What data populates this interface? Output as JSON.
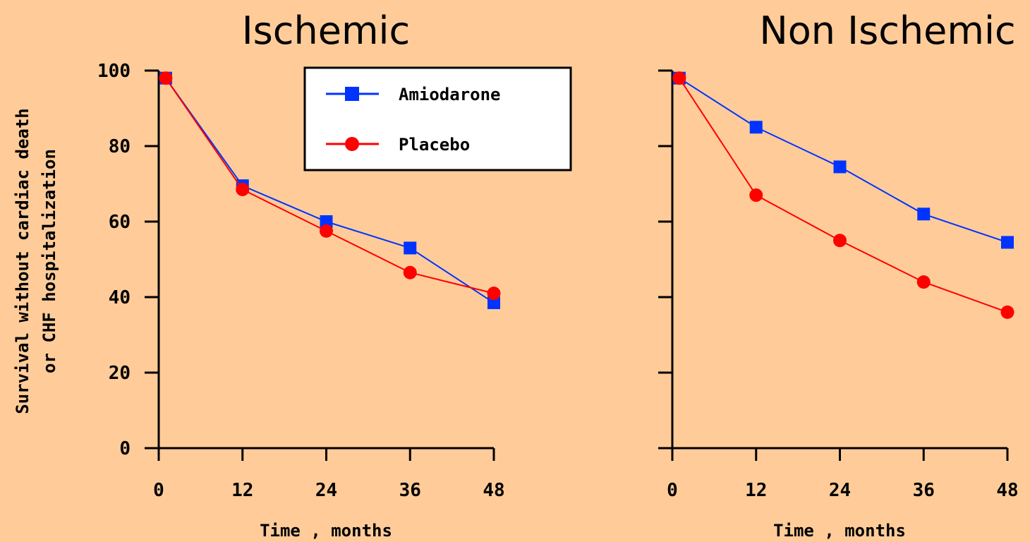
{
  "chart_data": [
    {
      "type": "line",
      "title": "Ischemic",
      "xlabel": "Time , months",
      "ylabel": [
        "Survival without cardiac death",
        "or CHF hospitalization"
      ],
      "x": [
        1,
        12,
        24,
        36,
        48
      ],
      "xticks": [
        "0",
        "12",
        "24",
        "36",
        "48"
      ],
      "xlim": [
        0,
        48
      ],
      "yticks": [
        "0",
        "20",
        "40",
        "60",
        "80",
        "100"
      ],
      "ylim": [
        0,
        100
      ],
      "grid": false,
      "legend": "top-right",
      "series": [
        {
          "name": "Amiodarone",
          "values": [
            98,
            69.5,
            60,
            53,
            38.5
          ],
          "color": "#0033FF",
          "marker": "square"
        },
        {
          "name": "Placebo",
          "values": [
            98,
            68.5,
            57.5,
            46.5,
            41
          ],
          "color": "#FF0000",
          "marker": "circle"
        }
      ]
    },
    {
      "type": "line",
      "title": "Non Ischemic",
      "xlabel": "Time , months",
      "x": [
        1,
        12,
        24,
        36,
        48
      ],
      "xticks": [
        "0",
        "12",
        "24",
        "36",
        "48"
      ],
      "xlim": [
        0,
        48
      ],
      "ylim": [
        0,
        100
      ],
      "grid": false,
      "series": [
        {
          "name": "Amiodarone",
          "values": [
            98,
            85,
            74.5,
            62,
            54.5
          ],
          "color": "#0033FF",
          "marker": "square"
        },
        {
          "name": "Placebo",
          "values": [
            98,
            67,
            55,
            44,
            36
          ],
          "color": "#FF0000",
          "marker": "circle"
        }
      ]
    }
  ]
}
